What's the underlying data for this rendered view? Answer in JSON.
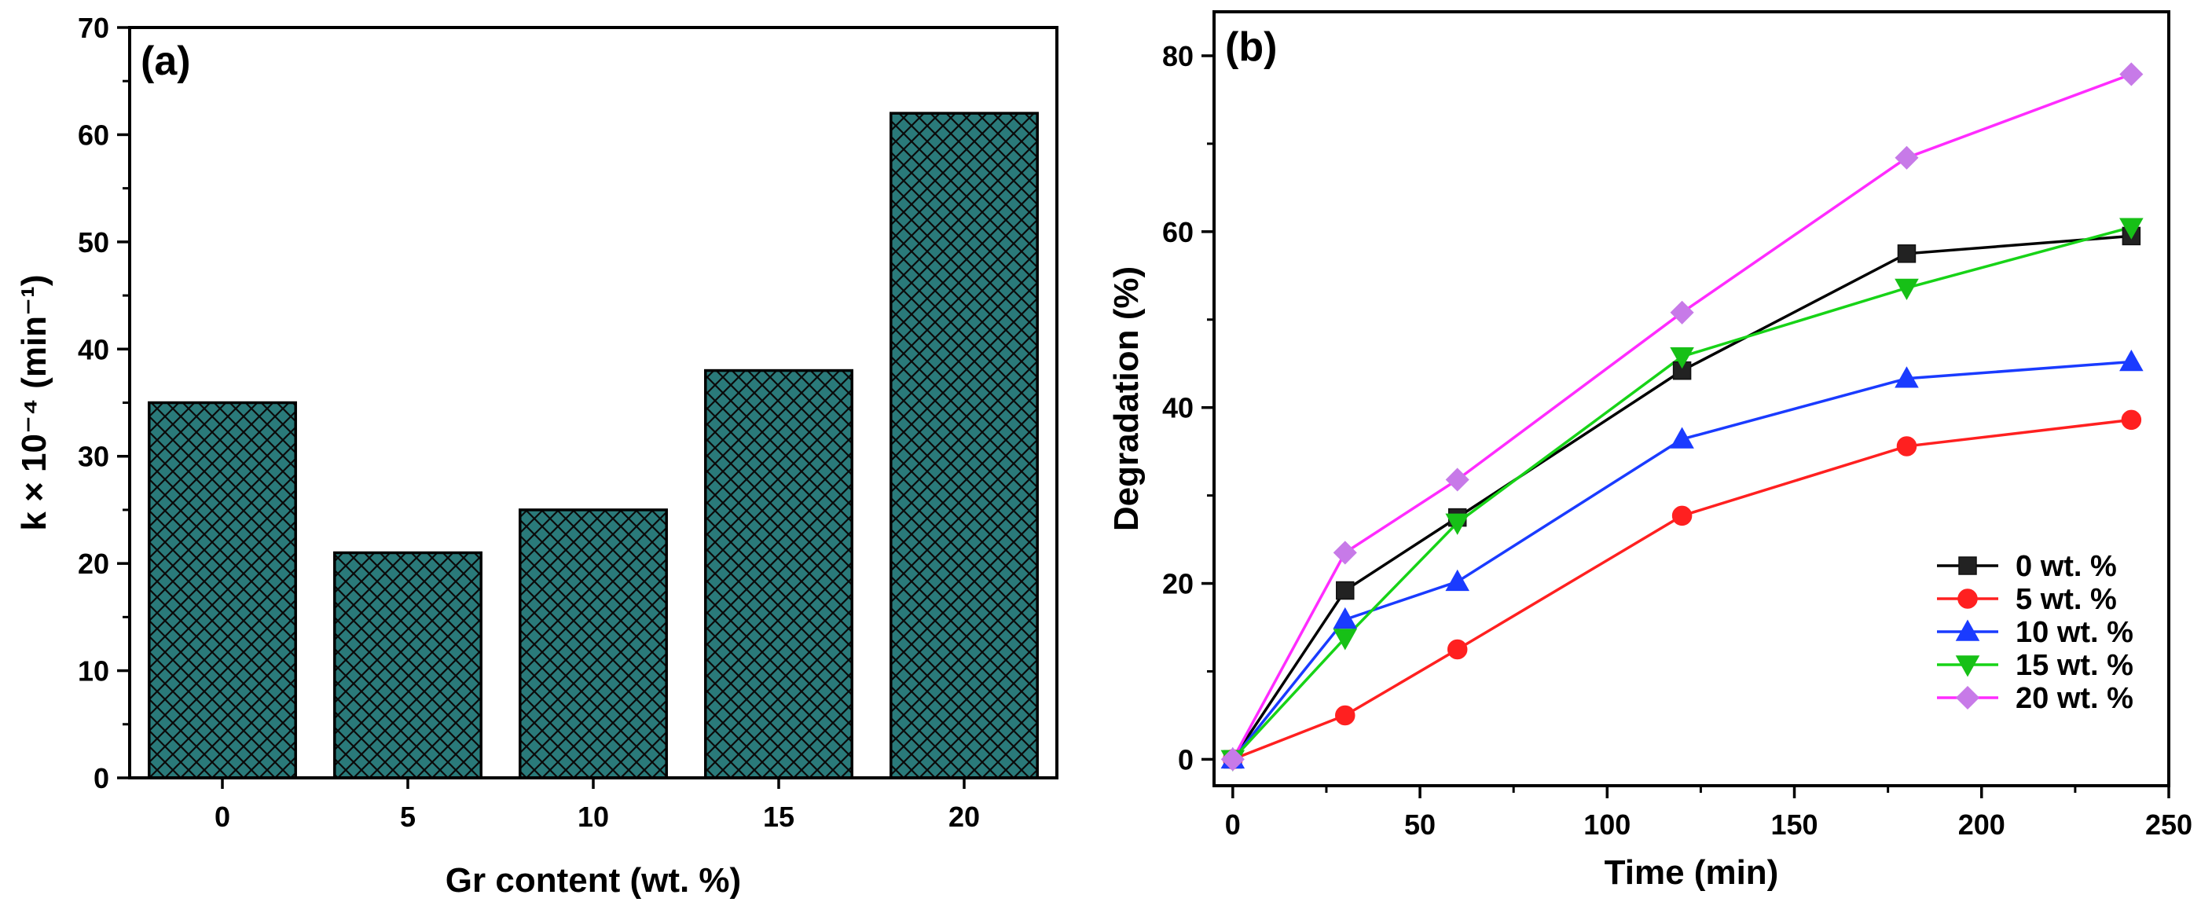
{
  "chart_data": [
    {
      "type": "bar",
      "panel_label": "(a)",
      "categories": [
        "0",
        "5",
        "10",
        "15",
        "20"
      ],
      "values": [
        35,
        21,
        25,
        38,
        62
      ],
      "xlabel": "Gr content (wt. %)",
      "ylabel": "k × 10⁻⁴ (min⁻¹)",
      "ylim": [
        0,
        70
      ],
      "yticks": [
        0,
        10,
        20,
        30,
        40,
        50,
        60,
        70
      ],
      "bar_color": "#2a7a7a",
      "hatch": "crosshatch",
      "grid": false
    },
    {
      "type": "line",
      "panel_label": "(b)",
      "x": [
        0,
        30,
        60,
        120,
        180,
        240
      ],
      "xlabel": "Time (min)",
      "ylabel": "Degradation (%)",
      "xlim": [
        -5,
        250
      ],
      "ylim": [
        -3,
        85
      ],
      "xticks": [
        0,
        50,
        100,
        150,
        200,
        250
      ],
      "yticks": [
        0,
        20,
        40,
        60,
        80
      ],
      "legend_position": "bottom-right",
      "grid": false,
      "series": [
        {
          "name": "0 wt. %",
          "marker": "square",
          "color": "#000000",
          "marker_color": "#222222",
          "values": [
            0,
            19.2,
            27.5,
            44.2,
            57.5,
            59.5
          ]
        },
        {
          "name": "5 wt. %",
          "marker": "circle",
          "color": "#ff2020",
          "marker_color": "#ff2020",
          "values": [
            0,
            5.0,
            12.5,
            27.7,
            35.6,
            38.6
          ]
        },
        {
          "name": "10 wt. %",
          "marker": "triangle-up",
          "color": "#1a3bff",
          "marker_color": "#1a3bff",
          "values": [
            0,
            15.9,
            20.2,
            36.4,
            43.3,
            45.2
          ]
        },
        {
          "name": "15 wt. %",
          "marker": "triangle-down",
          "color": "#17d317",
          "marker_color": "#17c017",
          "values": [
            0,
            13.8,
            26.9,
            45.8,
            53.6,
            60.5
          ]
        },
        {
          "name": "20 wt. %",
          "marker": "diamond",
          "color": "#ff2cff",
          "marker_color": "#c77ae8",
          "values": [
            0,
            23.5,
            31.8,
            50.8,
            68.4,
            77.9
          ]
        }
      ]
    }
  ]
}
